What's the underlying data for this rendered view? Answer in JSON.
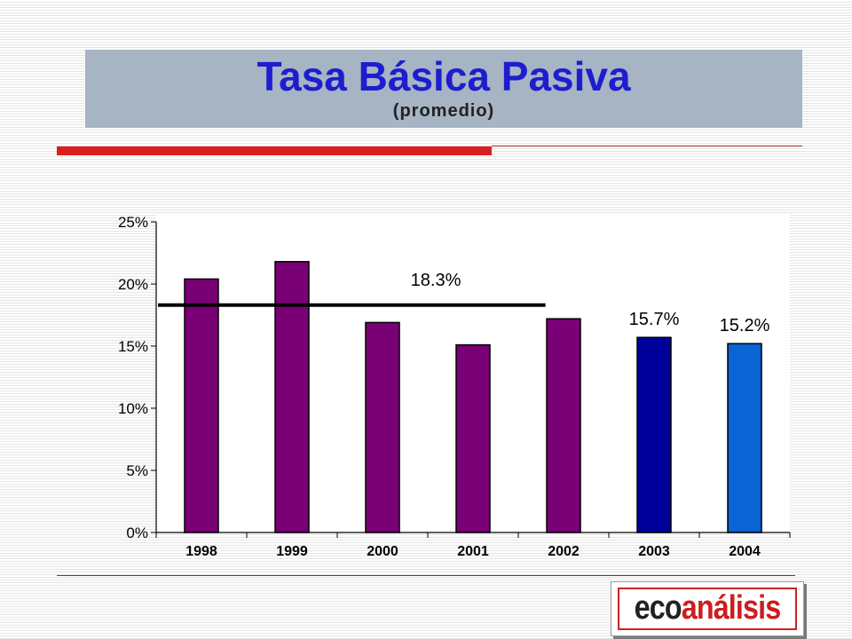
{
  "header": {
    "title": "Tasa Básica Pasiva",
    "subtitle": "(promedio)"
  },
  "logo": {
    "part1": "eco",
    "part2": "análisis"
  },
  "colors": {
    "title": "#1d1dcf",
    "accent_red": "#d81e1e",
    "bar_purple": "#7a0075",
    "bar_navy": "#00009a",
    "bar_blue": "#0a64d4"
  },
  "chart_data": {
    "type": "bar",
    "categories": [
      "1998",
      "1999",
      "2000",
      "2001",
      "2002",
      "2003",
      "2004"
    ],
    "values": [
      20.4,
      21.8,
      16.9,
      15.1,
      17.2,
      15.7,
      15.2
    ],
    "bar_colors": [
      "#7a0075",
      "#7a0075",
      "#7a0075",
      "#7a0075",
      "#7a0075",
      "#00009a",
      "#0a64d4"
    ],
    "ylim": [
      0,
      25
    ],
    "yticks": [
      0,
      5,
      10,
      15,
      20,
      25
    ],
    "ytick_labels": [
      "0%",
      "5%",
      "10%",
      "15%",
      "20%",
      "25%"
    ],
    "reference_line": {
      "value": 18.3,
      "from_category": "1998",
      "to_category": "2002",
      "label": "18.3%"
    },
    "data_labels": [
      {
        "category": "2003",
        "text": "15.7%"
      },
      {
        "category": "2004",
        "text": "15.2%"
      }
    ],
    "grid": false,
    "legend": "none"
  }
}
